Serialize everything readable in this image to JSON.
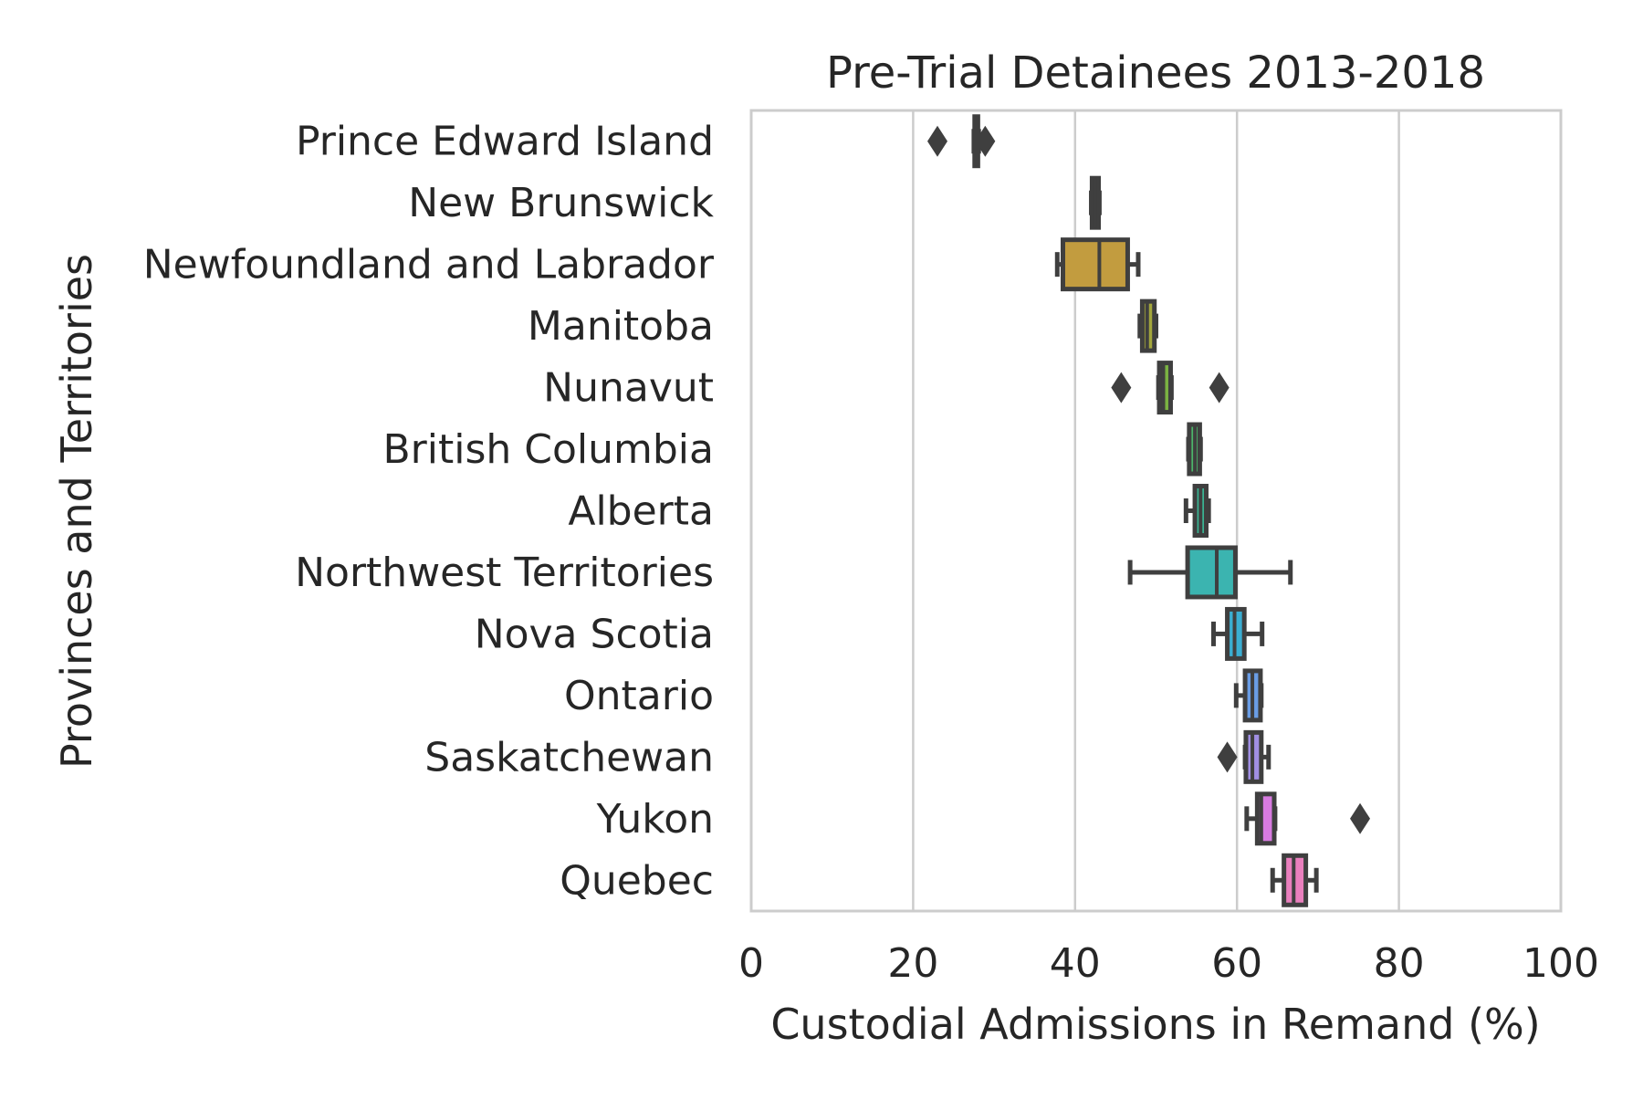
{
  "chart_data": {
    "type": "boxplot",
    "orientation": "horizontal",
    "title": "Pre-Trial Detainees 2013-2018",
    "xlabel": "Custodial Admissions in Remand (%)",
    "ylabel": "Provinces and Territories",
    "xlim": [
      0,
      100
    ],
    "xticks": [
      0,
      20,
      40,
      60,
      80,
      100
    ],
    "grid": "vertical",
    "legend": "none",
    "outlier_marker": "diamond",
    "categories": [
      {
        "name": "Prince Edward Island",
        "whislo": 27.5,
        "q1": 27.6,
        "med": 27.8,
        "q3": 28.0,
        "whishi": 28.1,
        "fliers": [
          23.0,
          28.9
        ],
        "color": "#e8736b"
      },
      {
        "name": "New Brunswick",
        "whislo": 42.0,
        "q1": 42.1,
        "med": 42.5,
        "q3": 42.9,
        "whishi": 43.0,
        "fliers": [],
        "color": "#d88a3c"
      },
      {
        "name": "Newfoundland and Labrador",
        "whislo": 37.8,
        "q1": 38.5,
        "med": 43.0,
        "q3": 46.5,
        "whishi": 47.8,
        "fliers": [],
        "color": "#c29c3f"
      },
      {
        "name": "Manitoba",
        "whislo": 48.0,
        "q1": 48.3,
        "med": 48.9,
        "q3": 49.8,
        "whishi": 50.0,
        "fliers": [],
        "color": "#a3a63c"
      },
      {
        "name": "Nunavut",
        "whislo": 50.3,
        "q1": 50.4,
        "med": 50.9,
        "q3": 51.8,
        "whishi": 51.9,
        "fliers": [
          45.7,
          57.8
        ],
        "color": "#7bb342"
      },
      {
        "name": "British Columbia",
        "whislo": 54.0,
        "q1": 54.1,
        "med": 54.8,
        "q3": 55.4,
        "whishi": 55.5,
        "fliers": [],
        "color": "#4cb66a"
      },
      {
        "name": "Alberta",
        "whislo": 53.7,
        "q1": 54.8,
        "med": 55.5,
        "q3": 56.2,
        "whishi": 56.5,
        "fliers": [],
        "color": "#3bb694"
      },
      {
        "name": "Northwest Territories",
        "whislo": 46.8,
        "q1": 53.9,
        "med": 57.5,
        "q3": 59.8,
        "whishi": 66.6,
        "fliers": [],
        "color": "#3bb4b0"
      },
      {
        "name": "Nova Scotia",
        "whislo": 57.1,
        "q1": 58.8,
        "med": 59.7,
        "q3": 60.9,
        "whishi": 63.1,
        "fliers": [],
        "color": "#3aaed2"
      },
      {
        "name": "Ontario",
        "whislo": 59.9,
        "q1": 61.0,
        "med": 61.9,
        "q3": 62.9,
        "whishi": 63.0,
        "fliers": [],
        "color": "#6a9de5"
      },
      {
        "name": "Saskatchewan",
        "whislo": 61.0,
        "q1": 61.1,
        "med": 61.9,
        "q3": 63.0,
        "whishi": 63.9,
        "fliers": [
          58.8
        ],
        "color": "#a18fe4"
      },
      {
        "name": "Yukon",
        "whislo": 61.2,
        "q1": 62.5,
        "med": 63.0,
        "q3": 64.6,
        "whishi": 64.7,
        "fliers": [
          75.2
        ],
        "color": "#d77be0"
      },
      {
        "name": "Quebec",
        "whislo": 64.4,
        "q1": 65.8,
        "med": 67.0,
        "q3": 68.5,
        "whishi": 69.8,
        "fliers": [],
        "color": "#e97fbd"
      }
    ]
  }
}
